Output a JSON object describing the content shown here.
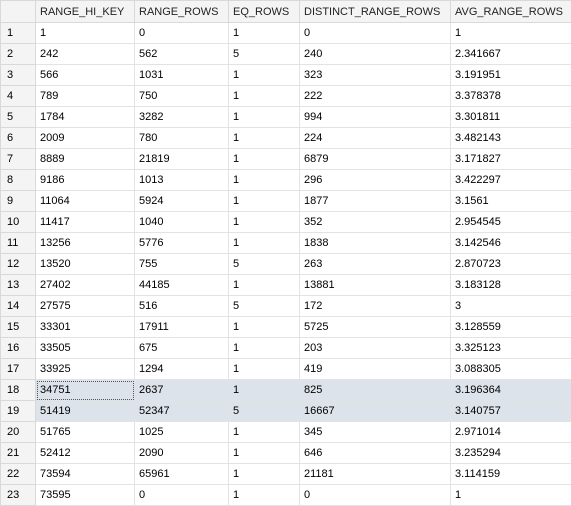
{
  "columns": [
    "RANGE_HI_KEY",
    "RANGE_ROWS",
    "EQ_ROWS",
    "DISTINCT_RANGE_ROWS",
    "AVG_RANGE_ROWS"
  ],
  "rows": [
    {
      "n": "1",
      "cells": [
        "1",
        "0",
        "1",
        "0",
        "1"
      ]
    },
    {
      "n": "2",
      "cells": [
        "242",
        "562",
        "5",
        "240",
        "2.341667"
      ]
    },
    {
      "n": "3",
      "cells": [
        "566",
        "1031",
        "1",
        "323",
        "3.191951"
      ]
    },
    {
      "n": "4",
      "cells": [
        "789",
        "750",
        "1",
        "222",
        "3.378378"
      ]
    },
    {
      "n": "5",
      "cells": [
        "1784",
        "3282",
        "1",
        "994",
        "3.301811"
      ]
    },
    {
      "n": "6",
      "cells": [
        "2009",
        "780",
        "1",
        "224",
        "3.482143"
      ]
    },
    {
      "n": "7",
      "cells": [
        "8889",
        "21819",
        "1",
        "6879",
        "3.171827"
      ]
    },
    {
      "n": "8",
      "cells": [
        "9186",
        "1013",
        "1",
        "296",
        "3.422297"
      ]
    },
    {
      "n": "9",
      "cells": [
        "11064",
        "5924",
        "1",
        "1877",
        "3.1561"
      ]
    },
    {
      "n": "10",
      "cells": [
        "11417",
        "1040",
        "1",
        "352",
        "2.954545"
      ]
    },
    {
      "n": "11",
      "cells": [
        "13256",
        "5776",
        "1",
        "1838",
        "3.142546"
      ]
    },
    {
      "n": "12",
      "cells": [
        "13520",
        "755",
        "5",
        "263",
        "2.870723"
      ]
    },
    {
      "n": "13",
      "cells": [
        "27402",
        "44185",
        "1",
        "13881",
        "3.183128"
      ]
    },
    {
      "n": "14",
      "cells": [
        "27575",
        "516",
        "5",
        "172",
        "3"
      ]
    },
    {
      "n": "15",
      "cells": [
        "33301",
        "17911",
        "1",
        "5725",
        "3.128559"
      ]
    },
    {
      "n": "16",
      "cells": [
        "33505",
        "675",
        "1",
        "203",
        "3.325123"
      ]
    },
    {
      "n": "17",
      "cells": [
        "33925",
        "1294",
        "1",
        "419",
        "3.088305"
      ]
    },
    {
      "n": "18",
      "cells": [
        "34751",
        "2637",
        "1",
        "825",
        "3.196364"
      ],
      "selected": true
    },
    {
      "n": "19",
      "cells": [
        "51419",
        "52347",
        "5",
        "16667",
        "3.140757"
      ],
      "selected": true
    },
    {
      "n": "20",
      "cells": [
        "51765",
        "1025",
        "1",
        "345",
        "2.971014"
      ]
    },
    {
      "n": "21",
      "cells": [
        "52412",
        "2090",
        "1",
        "646",
        "3.235294"
      ]
    },
    {
      "n": "22",
      "cells": [
        "73594",
        "65961",
        "1",
        "21181",
        "3.114159"
      ]
    },
    {
      "n": "23",
      "cells": [
        "73595",
        "0",
        "1",
        "0",
        "1"
      ]
    }
  ],
  "colors": {
    "header_bg": "#f4f4f4",
    "selected_bg": "#dde3ea",
    "grid_line": "#e3e3e3"
  }
}
